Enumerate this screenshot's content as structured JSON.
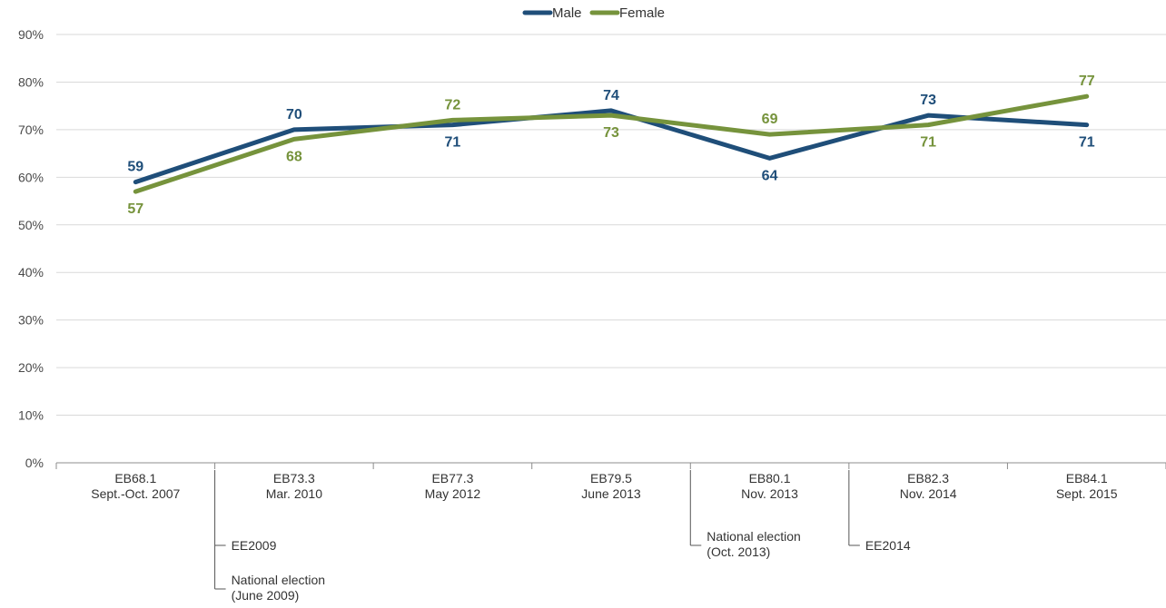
{
  "chart_data": {
    "type": "line",
    "ylim": [
      0,
      90
    ],
    "yticks": [
      "0%",
      "10%",
      "20%",
      "30%",
      "40%",
      "50%",
      "60%",
      "70%",
      "80%",
      "90%"
    ],
    "grid": true,
    "legend": "top-center",
    "categories": [
      [
        "EB68.1",
        "Sept.-Oct. 2007"
      ],
      [
        "EB73.3",
        "Mar. 2010"
      ],
      [
        "EB77.3",
        "May 2012"
      ],
      [
        "EB79.5",
        "June 2013"
      ],
      [
        "EB80.1",
        "Nov. 2013"
      ],
      [
        "EB82.3",
        "Nov. 2014"
      ],
      [
        "EB84.1",
        "Sept. 2015"
      ]
    ],
    "series": [
      {
        "name": "Male",
        "color": "#1f4e79",
        "values": [
          59,
          70,
          71,
          74,
          64,
          73,
          71
        ],
        "label_pos": [
          "above",
          "above",
          "below",
          "above",
          "below",
          "above",
          "below"
        ]
      },
      {
        "name": "Female",
        "color": "#76933c",
        "values": [
          57,
          68,
          72,
          73,
          69,
          71,
          77
        ],
        "label_pos": [
          "below",
          "below",
          "above",
          "below",
          "above",
          "below",
          "above"
        ]
      }
    ],
    "annotations": [
      {
        "category_index": 1,
        "lines": [
          [
            "EE2009"
          ],
          [
            "National election",
            "(June 2009)"
          ]
        ]
      },
      {
        "category_index": 4,
        "lines": [
          [
            "National election",
            "(Oct. 2013)"
          ]
        ]
      },
      {
        "category_index": 5,
        "lines": [
          [
            "EE2014"
          ]
        ]
      }
    ]
  }
}
